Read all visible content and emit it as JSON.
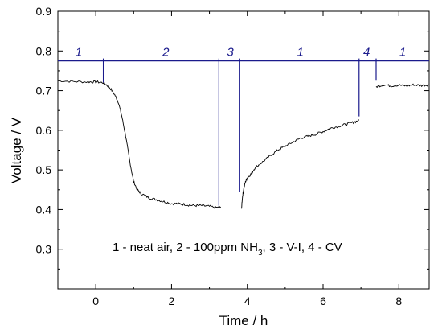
{
  "chart_data": {
    "type": "line",
    "title": "",
    "xlabel": "Time / h",
    "ylabel": "Voltage / V",
    "xlim": [
      -1,
      8.8
    ],
    "ylim": [
      0.2,
      0.9
    ],
    "x_ticks": [
      0,
      2,
      4,
      6,
      8
    ],
    "x_tick_labels": [
      "0",
      "2",
      "4",
      "6",
      "8"
    ],
    "y_ticks": [
      0.3,
      0.4,
      0.5,
      0.6,
      0.7,
      0.8,
      0.9
    ],
    "y_tick_labels": [
      "0.3",
      "0.4",
      "0.5",
      "0.6",
      "0.7",
      "0.8",
      "0.9"
    ],
    "series": [
      {
        "color": "#000000",
        "segments": [
          {
            "x": [
              -1.0,
              -0.6,
              -0.2,
              0.0,
              0.2,
              0.35,
              0.5,
              0.6,
              0.7,
              0.8,
              0.9,
              1.0,
              1.1,
              1.2,
              1.4,
              1.6,
              1.8,
              2.0,
              2.2,
              2.4,
              2.6,
              2.8,
              3.0,
              3.2,
              3.3
            ],
            "y": [
              0.725,
              0.723,
              0.722,
              0.722,
              0.72,
              0.71,
              0.69,
              0.67,
              0.63,
              0.58,
              0.52,
              0.47,
              0.45,
              0.44,
              0.43,
              0.425,
              0.42,
              0.415,
              0.415,
              0.412,
              0.41,
              0.41,
              0.408,
              0.405,
              0.405
            ]
          },
          {
            "x": [
              3.85,
              3.87,
              3.9,
              3.95,
              4.0,
              4.1,
              4.2,
              4.4,
              4.6,
              4.8,
              5.0,
              5.2,
              5.4,
              5.6,
              5.8,
              6.0,
              6.2,
              6.4,
              6.6,
              6.8,
              6.95
            ],
            "y": [
              0.405,
              0.43,
              0.45,
              0.47,
              0.48,
              0.49,
              0.505,
              0.52,
              0.535,
              0.55,
              0.56,
              0.57,
              0.58,
              0.585,
              0.59,
              0.597,
              0.605,
              0.61,
              0.615,
              0.62,
              0.625
            ]
          },
          {
            "x": [
              7.4,
              7.6,
              7.8,
              8.0,
              8.2,
              8.4,
              8.6,
              8.8
            ],
            "y": [
              0.71,
              0.715,
              0.712,
              0.714,
              0.712,
              0.715,
              0.713,
              0.715
            ]
          }
        ]
      }
    ],
    "phase_line": {
      "y": 0.775,
      "color": "#1a1a8c",
      "markers": [
        {
          "x": 0.2,
          "y_end": 0.72
        },
        {
          "x": 3.25,
          "y_end": 0.41
        },
        {
          "x": 3.8,
          "y_end": 0.445
        },
        {
          "x": 6.95,
          "y_end": 0.635
        },
        {
          "x": 7.4,
          "y_end": 0.725
        }
      ]
    },
    "phase_labels": [
      {
        "text": "1",
        "x": -0.45
      },
      {
        "text": "2",
        "x": 1.85
      },
      {
        "text": "3",
        "x": 3.55
      },
      {
        "text": "1",
        "x": 5.4
      },
      {
        "text": "4",
        "x": 7.15
      },
      {
        "text": "1",
        "x": 8.1
      }
    ],
    "annotation": {
      "part1": "1 - neat air,  2 - 100ppm NH",
      "sub": "3",
      "part2": ",  3 - V-I,  4 - CV"
    },
    "grid": false
  }
}
